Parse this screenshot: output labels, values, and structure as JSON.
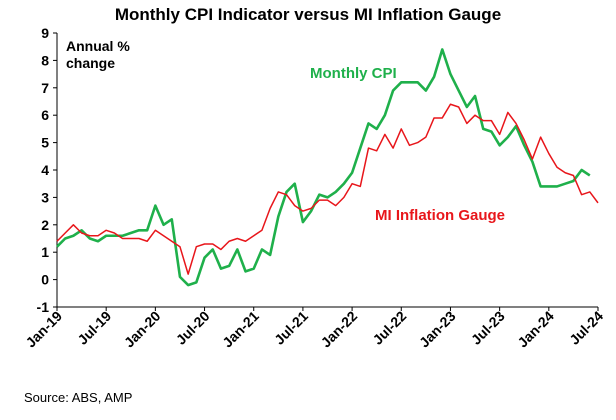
{
  "chart_data": {
    "type": "line",
    "title": "Monthly CPI Indicator versus MI Inflation Gauge",
    "y_label_lines": [
      "Annual %",
      "change"
    ],
    "source": "Source: ABS, AMP",
    "categories": [
      "Jan-19",
      null,
      null,
      null,
      null,
      null,
      "Jul-19",
      null,
      null,
      null,
      null,
      null,
      "Jan-20",
      null,
      null,
      null,
      null,
      null,
      "Jul-20",
      null,
      null,
      null,
      null,
      null,
      "Jan-21",
      null,
      null,
      null,
      null,
      null,
      "Jul-21",
      null,
      null,
      null,
      null,
      null,
      "Jan-22",
      null,
      null,
      null,
      null,
      null,
      "Jul-22",
      null,
      null,
      null,
      null,
      null,
      "Jan-23",
      null,
      null,
      null,
      null,
      null,
      "Jul-23",
      null,
      null,
      null,
      null,
      null,
      "Jan-24",
      null,
      null,
      null,
      null,
      null,
      "Jul-24"
    ],
    "series": [
      {
        "name": "Monthly CPI",
        "color": "#1fb04b",
        "values": [
          1.2,
          1.5,
          1.6,
          1.8,
          1.5,
          1.4,
          1.6,
          1.6,
          1.6,
          1.7,
          1.8,
          1.8,
          2.7,
          2.0,
          2.2,
          0.1,
          -0.2,
          -0.1,
          0.8,
          1.1,
          0.4,
          0.5,
          1.1,
          0.3,
          0.4,
          1.1,
          0.9,
          2.3,
          3.2,
          3.5,
          2.1,
          2.5,
          3.1,
          3.0,
          3.2,
          3.5,
          3.9,
          4.8,
          5.7,
          5.5,
          6.0,
          6.9,
          7.2,
          7.2,
          7.2,
          6.9,
          7.4,
          8.4,
          7.5,
          6.9,
          6.3,
          6.7,
          5.5,
          5.4,
          4.9,
          5.2,
          5.6,
          4.9,
          4.3,
          3.4,
          3.4,
          3.4,
          3.5,
          3.6,
          4.0,
          3.8,
          null
        ]
      },
      {
        "name": "MI Inflation Gauge",
        "color": "#e8161b",
        "values": [
          1.4,
          1.7,
          2.0,
          1.7,
          1.6,
          1.6,
          1.8,
          1.7,
          1.5,
          1.5,
          1.5,
          1.4,
          1.8,
          1.6,
          1.4,
          1.2,
          0.2,
          1.2,
          1.3,
          1.3,
          1.1,
          1.4,
          1.5,
          1.4,
          1.6,
          1.8,
          2.6,
          3.2,
          3.1,
          2.7,
          2.5,
          2.6,
          2.9,
          2.9,
          2.7,
          3.0,
          3.5,
          3.4,
          4.8,
          4.7,
          5.3,
          4.8,
          5.5,
          4.9,
          5.0,
          5.2,
          5.9,
          5.9,
          6.4,
          6.3,
          5.7,
          6.0,
          5.8,
          5.8,
          5.3,
          6.1,
          5.7,
          5.1,
          4.4,
          5.2,
          4.6,
          4.1,
          3.9,
          3.8,
          3.1,
          3.2,
          2.8
        ]
      }
    ],
    "ylim": [
      -1,
      9
    ],
    "yticks": [
      -1,
      0,
      1,
      2,
      3,
      4,
      5,
      6,
      7,
      8,
      9
    ],
    "grid": false
  }
}
